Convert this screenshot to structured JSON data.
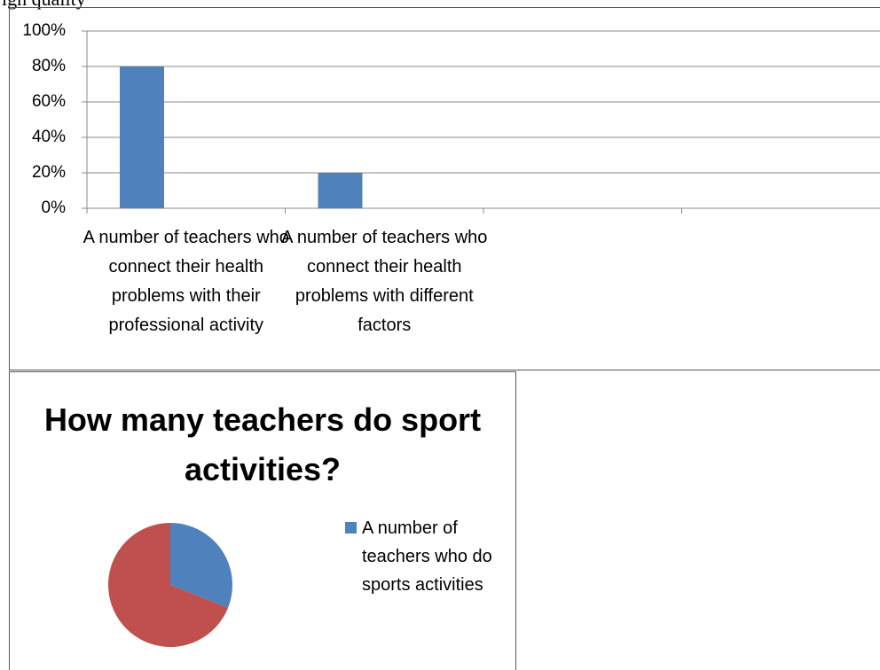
{
  "header_text": "igh quality",
  "chart_data": [
    {
      "type": "bar",
      "categories": [
        "A number of teachers who connect their health problems with their professional activity",
        "A number of teachers who connect their health problems with different factors",
        null,
        null
      ],
      "values": [
        80,
        20,
        null,
        null
      ],
      "color": "#4f81bd",
      "ylim": [
        0,
        100
      ],
      "yticks": [
        {
          "value": 0,
          "label": "0%"
        },
        {
          "value": 20,
          "label": "20%"
        },
        {
          "value": 40,
          "label": "40%"
        },
        {
          "value": 60,
          "label": "60%"
        },
        {
          "value": 80,
          "label": "80%"
        },
        {
          "value": 100,
          "label": "100%"
        }
      ],
      "grid": true
    },
    {
      "type": "pie",
      "title": "How many teachers do sport activities?",
      "categories": [
        "A number of teachers who do sports activities",
        null
      ],
      "values": [
        31,
        69
      ],
      "colors": [
        "#4f81bd",
        "#c0504d"
      ],
      "legend": "right"
    }
  ]
}
